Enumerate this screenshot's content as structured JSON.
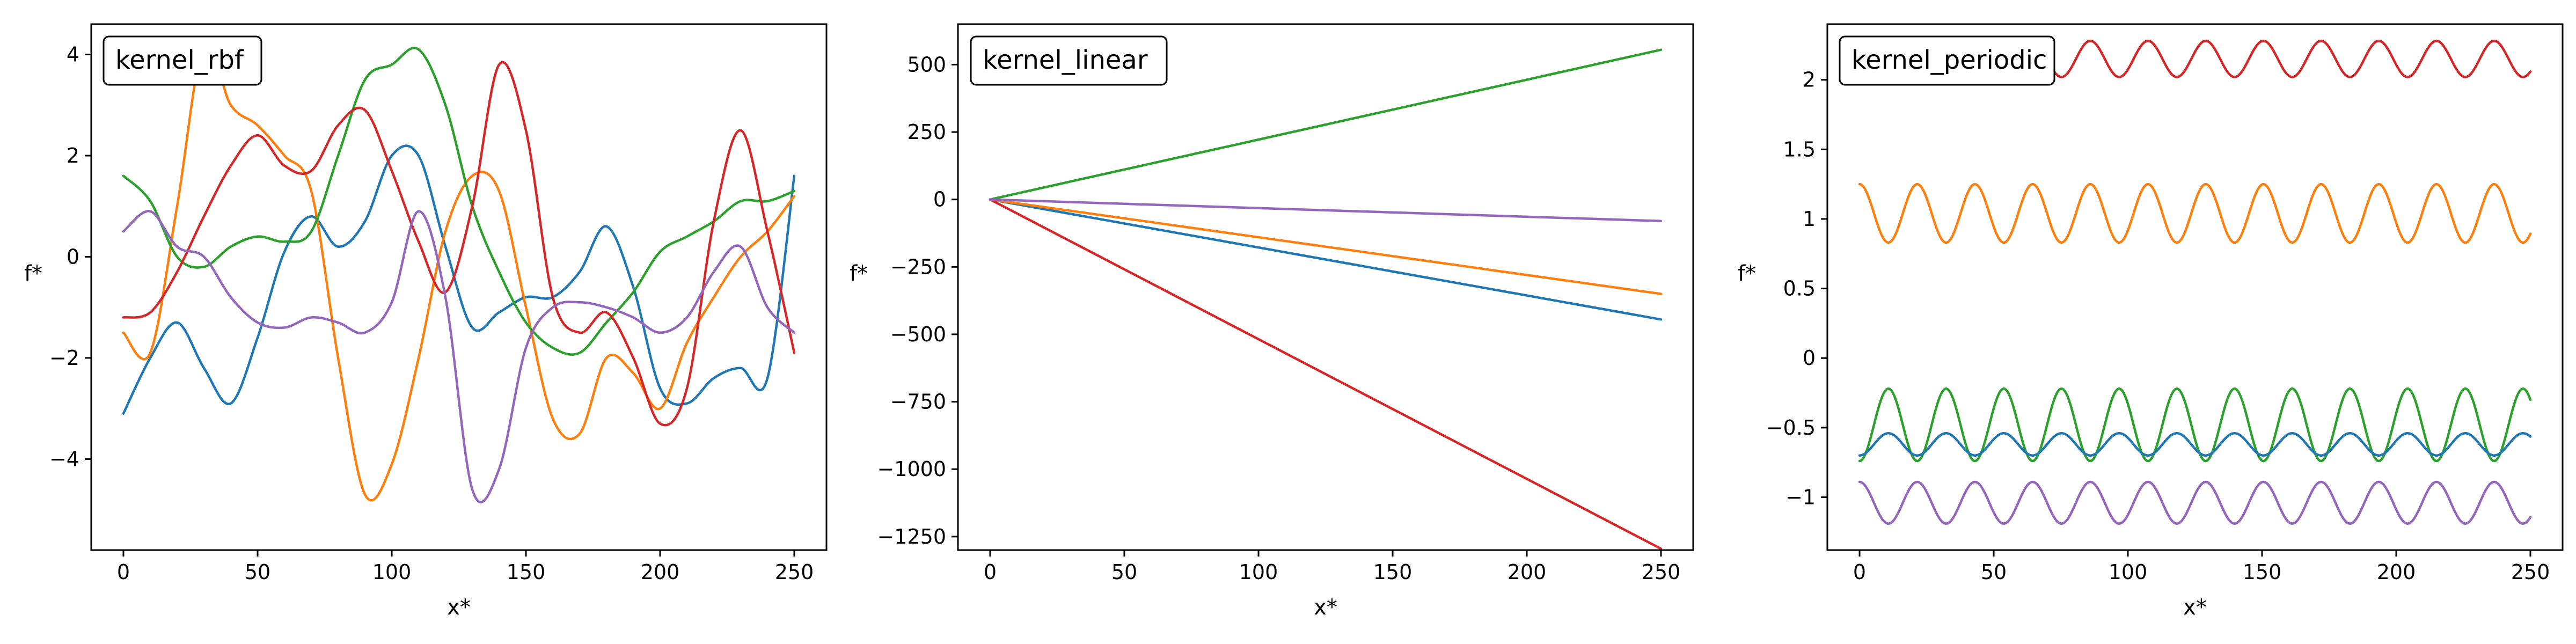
{
  "chart_data": [
    {
      "type": "line",
      "title": "kernel_rbf",
      "xlabel": "x*",
      "ylabel": "f*",
      "xlim": [
        -12,
        262
      ],
      "ylim": [
        -5.8,
        4.6
      ],
      "xticks": [
        0,
        50,
        100,
        150,
        200,
        250
      ],
      "yticks": [
        -4,
        -2,
        0,
        2,
        4
      ],
      "legend_position": "top-left",
      "x": [
        0,
        10,
        20,
        30,
        40,
        50,
        60,
        70,
        80,
        90,
        100,
        110,
        120,
        130,
        140,
        150,
        160,
        170,
        180,
        190,
        200,
        210,
        220,
        230,
        240,
        250
      ],
      "series": [
        {
          "color": "#1f77b4",
          "values": [
            -3.1,
            -2.0,
            -1.3,
            -2.2,
            -2.9,
            -1.6,
            0.1,
            0.8,
            0.2,
            0.7,
            2.0,
            2.0,
            0.2,
            -1.4,
            -1.1,
            -0.8,
            -0.8,
            -0.3,
            0.6,
            -0.6,
            -2.6,
            -2.9,
            -2.4,
            -2.2,
            -2.4,
            1.6
          ]
        },
        {
          "color": "#ff7f0e",
          "values": [
            -1.5,
            -1.9,
            1.0,
            4.2,
            3.0,
            2.6,
            2.0,
            1.3,
            -2.0,
            -4.7,
            -4.1,
            -2.0,
            0.5,
            1.6,
            1.3,
            -1.0,
            -3.2,
            -3.5,
            -2.0,
            -2.3,
            -3.0,
            -1.7,
            -0.8,
            0.0,
            0.5,
            1.2
          ]
        },
        {
          "color": "#2ca02c",
          "values": [
            1.6,
            1.1,
            0.0,
            -0.2,
            0.2,
            0.4,
            0.3,
            0.5,
            2.0,
            3.5,
            3.8,
            4.1,
            3.0,
            1.0,
            -0.3,
            -1.3,
            -1.8,
            -1.9,
            -1.3,
            -0.7,
            0.1,
            0.4,
            0.7,
            1.1,
            1.1,
            1.3
          ]
        },
        {
          "color": "#d62728",
          "values": [
            -1.2,
            -1.1,
            -0.3,
            0.8,
            1.8,
            2.4,
            1.8,
            1.7,
            2.6,
            2.9,
            1.7,
            0.3,
            -0.7,
            1.0,
            3.8,
            2.5,
            -0.8,
            -1.5,
            -1.1,
            -2.0,
            -3.3,
            -2.6,
            0.7,
            2.5,
            0.5,
            -1.9
          ]
        },
        {
          "color": "#9467bd",
          "values": [
            0.5,
            0.9,
            0.2,
            0.0,
            -0.8,
            -1.3,
            -1.4,
            -1.2,
            -1.3,
            -1.5,
            -0.9,
            0.9,
            -0.8,
            -4.6,
            -4.2,
            -1.8,
            -1.0,
            -0.9,
            -1.0,
            -1.2,
            -1.5,
            -1.2,
            -0.3,
            0.2,
            -1.0,
            -1.5
          ]
        }
      ]
    },
    {
      "type": "line",
      "title": "kernel_linear",
      "xlabel": "x*",
      "ylabel": "f*",
      "xlim": [
        -12,
        262
      ],
      "ylim": [
        -1300,
        650
      ],
      "xticks": [
        0,
        50,
        100,
        150,
        200,
        250
      ],
      "yticks": [
        500,
        250,
        0,
        -250,
        -500,
        -750,
        -1000,
        -1250
      ],
      "legend_position": "top-left",
      "x": [
        0,
        250
      ],
      "series": [
        {
          "color": "#1f77b4",
          "values": [
            0,
            -445
          ]
        },
        {
          "color": "#ff7f0e",
          "values": [
            0,
            -350
          ]
        },
        {
          "color": "#2ca02c",
          "values": [
            0,
            555
          ]
        },
        {
          "color": "#d62728",
          "values": [
            0,
            -1295
          ]
        },
        {
          "color": "#9467bd",
          "values": [
            0,
            -80
          ]
        }
      ]
    },
    {
      "type": "line",
      "title": "kernel_periodic",
      "xlabel": "x*",
      "ylabel": "f*",
      "xlim": [
        -12,
        262
      ],
      "ylim": [
        -1.38,
        2.4
      ],
      "xticks": [
        0,
        50,
        100,
        150,
        200,
        250
      ],
      "yticks": [
        2.0,
        1.5,
        1.0,
        0.5,
        0.0,
        -0.5,
        -1.0
      ],
      "legend_position": "top-left",
      "period": 21.5,
      "series": [
        {
          "color": "#d62728",
          "mean": 2.15,
          "amplitude": 0.13,
          "phase": 1.5708
        },
        {
          "color": "#ff7f0e",
          "mean": 1.04,
          "amplitude": 0.21,
          "phase": 1.5708
        },
        {
          "color": "#2ca02c",
          "mean": -0.48,
          "amplitude": 0.26,
          "phase": -1.5708
        },
        {
          "color": "#1f77b4",
          "mean": -0.62,
          "amplitude": 0.08,
          "phase": -1.5708
        },
        {
          "color": "#9467bd",
          "mean": -1.04,
          "amplitude": 0.15,
          "phase": 1.5708
        }
      ]
    }
  ]
}
